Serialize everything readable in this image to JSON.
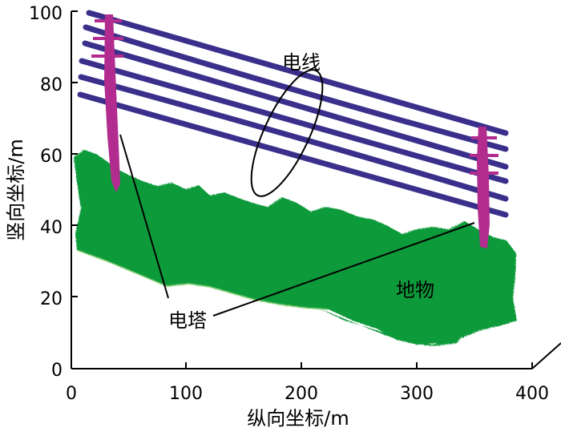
{
  "axes": {
    "x": {
      "title": "纵向坐标/m",
      "ticks": [
        "0",
        "100",
        "200",
        "300",
        "400"
      ]
    },
    "y": {
      "title": "竖向坐标/m",
      "ticks": [
        "0",
        "20",
        "40",
        "60",
        "80",
        "100"
      ]
    }
  },
  "labels": {
    "power_line": "电线",
    "tower": "电塔",
    "ground": "地物"
  },
  "colors": {
    "power_line": "#3a2f8a",
    "tower": "#b12c8e",
    "ground": "#0a9a3a"
  }
}
